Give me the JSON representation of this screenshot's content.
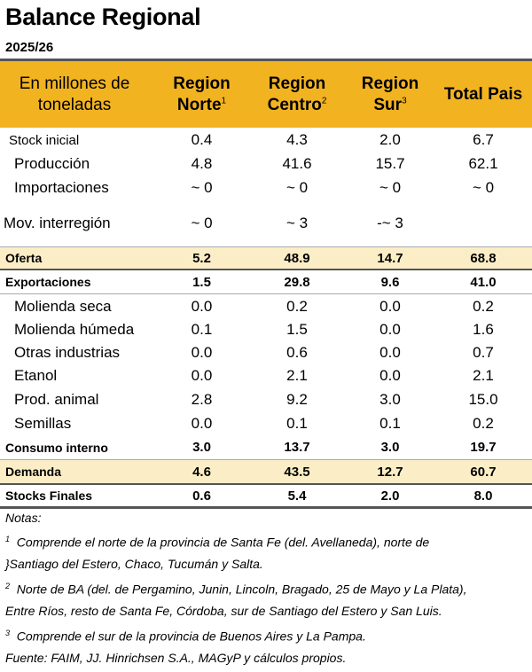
{
  "title": "Balance Regional",
  "subtitle": "2025/26",
  "header": {
    "label_line1": "En millones de",
    "label_line2": "toneladas",
    "col1": {
      "l1": "Region",
      "l2": "Norte",
      "sup": "1"
    },
    "col2": {
      "l1": "Region",
      "l2": "Centro",
      "sup": "2"
    },
    "col3": {
      "l1": "Region",
      "l2": "Sur",
      "sup": "3"
    },
    "col4": {
      "l1": "Total Pais"
    }
  },
  "rows": [
    {
      "label": "Stock inicial",
      "values": [
        "0.4",
        "4.3",
        "2.0",
        "6.7"
      ]
    },
    {
      "label": "Producción",
      "values": [
        "4.8",
        "41.6",
        "15.7",
        "62.1"
      ]
    },
    {
      "label": "Importaciones",
      "values": [
        "~ 0",
        "~ 0",
        "~ 0",
        "~ 0"
      ]
    },
    {
      "label": "Mov. interregión",
      "values": [
        "~ 0",
        "~ 3",
        "-~ 3",
        ""
      ]
    },
    {
      "label": "Oferta",
      "values": [
        "5.2",
        "48.9",
        "14.7",
        "68.8"
      ]
    },
    {
      "label": "Exportaciones",
      "values": [
        "1.5",
        "29.8",
        "9.6",
        "41.0"
      ]
    },
    {
      "label": "Molienda seca",
      "values": [
        "0.0",
        "0.2",
        "0.0",
        "0.2"
      ]
    },
    {
      "label": "Molienda húmeda",
      "values": [
        "0.1",
        "1.5",
        "0.0",
        "1.6"
      ]
    },
    {
      "label": "Otras industrias",
      "values": [
        "0.0",
        "0.6",
        "0.0",
        "0.7"
      ]
    },
    {
      "label": "Etanol",
      "values": [
        "0.0",
        "2.1",
        "0.0",
        "2.1"
      ]
    },
    {
      "label": "Prod. animal",
      "values": [
        "2.8",
        "9.2",
        "3.0",
        "15.0"
      ]
    },
    {
      "label": "Semillas",
      "values": [
        "0.0",
        "0.1",
        "0.1",
        "0.2"
      ]
    },
    {
      "label": "Consumo interno",
      "values": [
        "3.0",
        "13.7",
        "3.0",
        "19.7"
      ]
    },
    {
      "label": "Demanda",
      "values": [
        "4.6",
        "43.5",
        "12.7",
        "60.7"
      ]
    },
    {
      "label": "Stocks Finales",
      "values": [
        "0.6",
        "5.4",
        "2.0",
        "8.0"
      ]
    }
  ],
  "notes": {
    "heading": "Notas:",
    "n1_num": "1",
    "n1_line1": "Comprende el norte de la provincia de Santa Fe (del. Avellaneda), norte de",
    "n1_line2": "}Santiago del Estero, Chaco, Tucumán y Salta.",
    "n2_num": "2",
    "n2_line1": "Norte de BA (del. de Pergamino, Junin, Lincoln, Bragado, 25 de Mayo y La Plata),",
    "n2_line2": "Entre Ríos, resto de Santa Fe, Córdoba, sur de Santiago del Estero y San Luis.",
    "n3_num": "3",
    "n3_line1": "Comprende el sur de la provincia de Buenos Aires y La Pampa.",
    "source": "Fuente: FAIM, JJ. Hinrichsen S.A., MAGyP y cálculos propios."
  }
}
